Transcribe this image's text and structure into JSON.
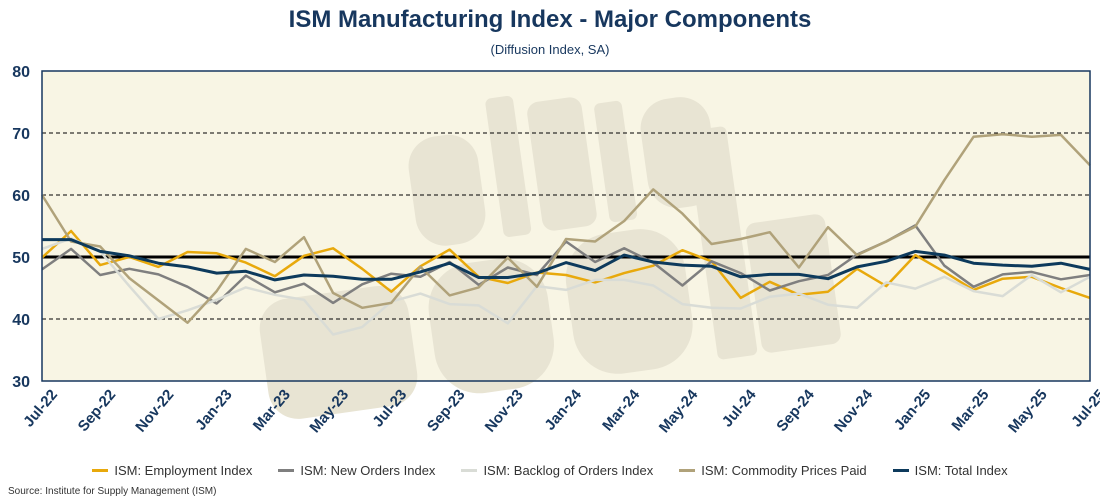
{
  "chart_data": {
    "type": "line",
    "title": "ISM Manufacturing Index - Major Components",
    "subtitle": "(Diffusion Index, SA)",
    "xlabel": "",
    "ylabel": "",
    "ylim": [
      30,
      80
    ],
    "yticks": [
      "30",
      "40",
      "50",
      "60",
      "70",
      "80"
    ],
    "reference_line": 50,
    "grid": "dashed horizontal",
    "legend_position": "bottom",
    "watermark": "alfie meek",
    "x": [
      "Jul-22",
      "Aug-22",
      "Sep-22",
      "Oct-22",
      "Nov-22",
      "Dec-22",
      "Jan-23",
      "Feb-23",
      "Mar-23",
      "Apr-23",
      "May-23",
      "Jun-23",
      "Jul-23",
      "Aug-23",
      "Sep-23",
      "Oct-23",
      "Nov-23",
      "Dec-23",
      "Jan-24",
      "Feb-24",
      "Mar-24",
      "Apr-24",
      "May-24",
      "Jun-24",
      "Jul-24",
      "Aug-24",
      "Sep-24",
      "Oct-24",
      "Nov-24",
      "Dec-24",
      "Jan-25",
      "Feb-25",
      "Mar-25",
      "Apr-25",
      "May-25",
      "Jun-25",
      "Jul-25"
    ],
    "xtick_labels": [
      "Jul-22",
      "Sep-22",
      "Nov-22",
      "Jan-23",
      "Mar-23",
      "May-23",
      "Jul-23",
      "Sep-23",
      "Nov-23",
      "Jan-24",
      "Mar-24",
      "May-24",
      "Jul-24",
      "Sep-24",
      "Nov-24",
      "Jan-25",
      "Mar-25",
      "May-25",
      "Jul-25"
    ],
    "series": [
      {
        "name": "ISM: Employment Index",
        "color": "#e8a90c",
        "width": 2.5,
        "values": [
          49.9,
          54.2,
          48.7,
          50.0,
          48.4,
          50.8,
          50.6,
          49.1,
          46.9,
          50.2,
          51.4,
          48.1,
          44.4,
          48.5,
          51.2,
          46.8,
          45.8,
          47.5,
          47.1,
          45.9,
          47.4,
          48.6,
          51.1,
          49.3,
          43.4,
          46.0,
          43.9,
          44.4,
          48.1,
          45.3,
          50.3,
          47.6,
          44.7,
          46.5,
          46.8,
          45.0,
          43.4
        ]
      },
      {
        "name": "ISM: New Orders Index",
        "color": "#7f7f7f",
        "width": 2.5,
        "values": [
          48.0,
          51.3,
          47.1,
          48.1,
          47.2,
          45.2,
          42.5,
          47.0,
          44.3,
          45.7,
          42.6,
          45.6,
          47.3,
          46.8,
          49.2,
          45.5,
          48.3,
          47.1,
          52.5,
          49.2,
          51.4,
          49.1,
          45.4,
          49.3,
          47.4,
          44.6,
          46.1,
          47.1,
          50.4,
          52.5,
          55.1,
          48.6,
          45.2,
          47.2,
          47.6,
          46.4,
          47.1
        ]
      },
      {
        "name": "ISM: Backlog of Orders Index",
        "color": "#d9dcd6",
        "width": 2.5,
        "values": [
          51.3,
          53.0,
          50.9,
          45.3,
          40.0,
          41.4,
          43.1,
          45.1,
          43.9,
          43.1,
          37.5,
          38.7,
          42.8,
          44.1,
          42.4,
          42.2,
          39.3,
          45.3,
          44.7,
          46.3,
          46.3,
          45.4,
          42.4,
          41.8,
          41.7,
          43.6,
          44.1,
          42.3,
          41.8,
          45.9,
          44.9,
          46.8,
          44.5,
          43.7,
          47.1,
          44.3,
          46.8
        ]
      },
      {
        "name": "ISM: Commodity Prices Paid",
        "color": "#b0a27a",
        "width": 2.5,
        "values": [
          60.0,
          52.5,
          51.7,
          46.6,
          43.0,
          39.4,
          44.5,
          51.3,
          49.2,
          53.2,
          44.2,
          41.8,
          42.6,
          48.4,
          43.8,
          45.1,
          49.9,
          45.2,
          52.9,
          52.5,
          55.8,
          60.9,
          57.0,
          52.1,
          52.9,
          54.0,
          48.3,
          54.8,
          50.3,
          52.5,
          54.9,
          62.4,
          69.4,
          69.8,
          69.4,
          69.7,
          64.8
        ]
      },
      {
        "name": "ISM: Total Index",
        "color": "#0d3a5c",
        "width": 3,
        "values": [
          52.8,
          52.8,
          50.9,
          50.2,
          49.0,
          48.4,
          47.4,
          47.7,
          46.3,
          47.1,
          46.9,
          46.4,
          46.4,
          47.6,
          49.0,
          46.7,
          46.7,
          47.4,
          49.1,
          47.8,
          50.3,
          49.2,
          48.7,
          48.5,
          46.8,
          47.2,
          47.2,
          46.5,
          48.4,
          49.3,
          50.9,
          50.3,
          49.0,
          48.7,
          48.5,
          49.0,
          48.0
        ]
      }
    ],
    "source": "Source: Institute for Supply Management (ISM)"
  }
}
